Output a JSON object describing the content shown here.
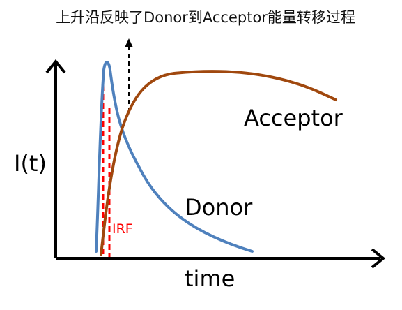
{
  "title": "上升沿反映了Donor到Acceptor能量转移过程",
  "y_axis_label": "I(t)",
  "x_axis_label": "time",
  "labels": {
    "acceptor": "Acceptor",
    "donor": "Donor",
    "irf": "IRF"
  },
  "colors": {
    "axis": "#000000",
    "donor": "#4F81BD",
    "acceptor": "#A0480E",
    "irf": "#FF0000",
    "arrow": "#000000"
  }
}
